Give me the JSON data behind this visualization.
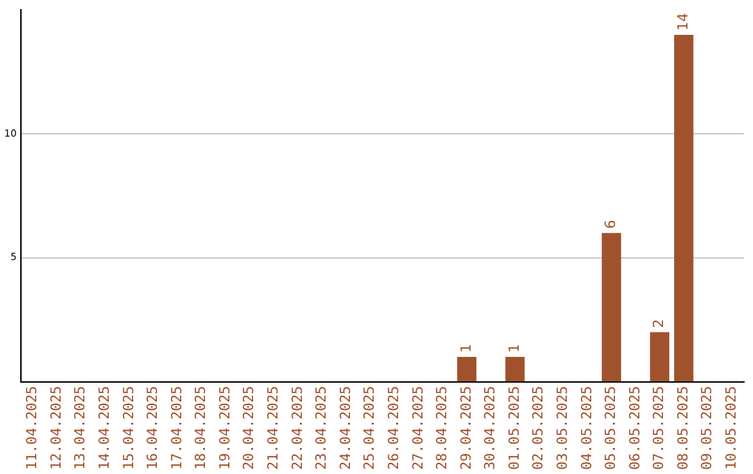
{
  "chart_data": {
    "type": "bar",
    "categories": [
      "11.04.2025",
      "12.04.2025",
      "13.04.2025",
      "14.04.2025",
      "15.04.2025",
      "16.04.2025",
      "17.04.2025",
      "18.04.2025",
      "19.04.2025",
      "20.04.2025",
      "21.04.2025",
      "22.04.2025",
      "23.04.2025",
      "24.04.2025",
      "25.04.2025",
      "26.04.2025",
      "27.04.2025",
      "28.04.2025",
      "29.04.2025",
      "30.04.2025",
      "01.05.2025",
      "02.05.2025",
      "03.05.2025",
      "04.05.2025",
      "05.05.2025",
      "06.05.2025",
      "07.05.2025",
      "08.05.2025",
      "09.05.2025",
      "10.05.2025"
    ],
    "values": [
      0,
      0,
      0,
      0,
      0,
      0,
      0,
      0,
      0,
      0,
      0,
      0,
      0,
      0,
      0,
      0,
      0,
      0,
      1,
      0,
      1,
      0,
      0,
      0,
      6,
      0,
      2,
      14,
      0,
      0
    ],
    "value_labels": [
      null,
      null,
      null,
      null,
      null,
      null,
      null,
      null,
      null,
      null,
      null,
      null,
      null,
      null,
      null,
      null,
      null,
      null,
      "1",
      null,
      "1",
      null,
      null,
      null,
      "6",
      null,
      "2",
      "14",
      null,
      null
    ],
    "color": "#a0522d",
    "ylim": [
      0,
      15
    ],
    "yticks": [
      5,
      10
    ],
    "grid": "y",
    "legend": false
  }
}
